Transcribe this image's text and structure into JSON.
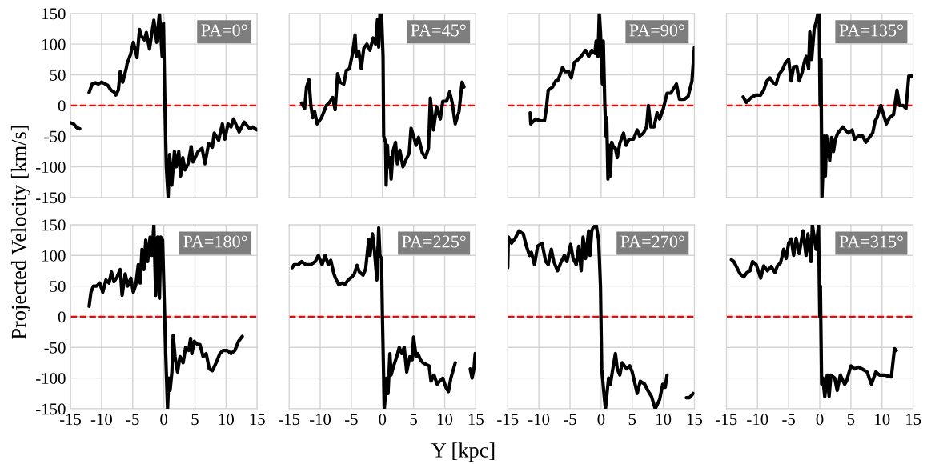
{
  "chart_data": [
    {
      "type": "line",
      "ylabel": "Projected Velocity [km/s]",
      "annotations": [
        "PA=0°"
      ],
      "tick_labels": "y",
      "grid": true,
      "xlim": [
        -15,
        15
      ],
      "ylim": [
        -150,
        150
      ],
      "xticks": [
        -15,
        -10,
        -5,
        0,
        5,
        10,
        15
      ],
      "yticks": [
        -150,
        -100,
        -50,
        0,
        50,
        100,
        150
      ],
      "ref_lines": [
        {
          "axis": "y",
          "value": 0,
          "color": "#ff0000",
          "line_style": "dashed"
        }
      ],
      "series": [
        {
          "color": "#000000",
          "x": [
            -15,
            -14.5,
            -14,
            -13.5,
            -13,
            -12,
            -11.5,
            -11,
            -10.5,
            -10,
            -9,
            -8.5,
            -8,
            -7.7,
            -7.3,
            -7,
            -6.6,
            -6,
            -5.9,
            -5.35,
            -4.9,
            -4.3,
            -3.9,
            -3.7,
            -3.1,
            -2.8,
            -2.3,
            -1.6,
            -1.15,
            -0.7,
            -0.27,
            -0.05,
            0.18,
            0.4,
            0.7,
            0.93,
            1.28,
            1.7,
            2.0,
            2.4,
            2.7,
            3.05,
            3.4,
            3.9,
            4.4,
            4.7,
            5.5,
            6.15,
            6.6,
            7.2,
            7.8,
            8.1,
            8.8,
            9.4,
            9.8,
            10.3,
            10.8,
            11.2,
            12.1,
            12.9,
            13.8,
            14.3,
            15
          ],
          "values": [
            -28,
            -30,
            -36,
            -38,
            null,
            21,
            35,
            37,
            35,
            38,
            33,
            25,
            22,
            17,
            25,
            55,
            38,
            62,
            68,
            83,
            103,
            78,
            124,
            114,
            107,
            119,
            92,
            139,
            103,
            150,
            80,
            134,
            0,
            -100,
            -150,
            -80,
            -130,
            -75,
            -100,
            -75,
            -115,
            -85,
            -105,
            -95,
            -67,
            -92,
            -75,
            -70,
            -95,
            -62,
            -68,
            -45,
            -57,
            -30,
            -55,
            -30,
            -35,
            -22,
            -43,
            -27,
            -38,
            -35,
            -40
          ]
        }
      ]
    },
    {
      "type": "line",
      "annotations": [
        "PA=45°"
      ],
      "tick_labels": false,
      "grid": true,
      "xlim": [
        -15,
        15
      ],
      "ylim": [
        -150,
        150
      ],
      "xticks": [
        -15,
        -10,
        -5,
        0,
        5,
        10,
        15
      ],
      "yticks": [
        -150,
        -100,
        -50,
        0,
        50,
        100,
        150
      ],
      "ref_lines": [
        {
          "axis": "y",
          "value": 0,
          "color": "#ff0000",
          "line_style": "dashed"
        }
      ],
      "series": [
        {
          "color": "#000000",
          "x": [
            -13,
            -12.5,
            -12.2,
            -11.8,
            -11.5,
            -11.2,
            -10.9,
            -10.5,
            -9.8,
            -9,
            -8.5,
            -8,
            -7.6,
            -7.2,
            -6.8,
            -6.2,
            -5.8,
            -5.3,
            -4.8,
            -4.4,
            -4.2,
            -3.8,
            -3.4,
            -3,
            -2.5,
            -2,
            -1.5,
            -1.1,
            -0.8,
            -0.6,
            -0.4,
            -0.15,
            0.1,
            0.2,
            0.5,
            0.6,
            0.8,
            1,
            1.2,
            1.4,
            1.7,
            2.1,
            2.4,
            2.8,
            3.3,
            3.8,
            4.3,
            4.6,
            5,
            5.4,
            5.8,
            6.4,
            6.9,
            7.4,
            7.7,
            8.2,
            8.7,
            9.3,
            9.7,
            10.3,
            10.8,
            11.2,
            11.7,
            12.3,
            12.8,
            13.1
          ],
          "values": [
            4,
            -5,
            30,
            42,
            0,
            -20,
            -10,
            -30,
            -20,
            0,
            5,
            13,
            -7,
            52,
            38,
            35,
            57,
            60,
            85,
            115,
            80,
            88,
            60,
            93,
            100,
            90,
            110,
            100,
            140,
            95,
            150,
            150,
            80,
            -50,
            -60,
            -130,
            -65,
            -100,
            -85,
            -120,
            -75,
            -60,
            -95,
            -73,
            -100,
            -88,
            -78,
            -37,
            -50,
            -65,
            -52,
            -77,
            -85,
            -70,
            12,
            -40,
            -2,
            -22,
            7,
            7,
            22,
            5,
            -30,
            -10,
            38,
            30
          ]
        }
      ]
    },
    {
      "type": "line",
      "annotations": [
        "PA=90°"
      ],
      "tick_labels": false,
      "grid": true,
      "xlim": [
        -15,
        15
      ],
      "ylim": [
        -150,
        150
      ],
      "xticks": [
        -15,
        -10,
        -5,
        0,
        5,
        10,
        15
      ],
      "yticks": [
        -150,
        -100,
        -50,
        0,
        50,
        100,
        150
      ],
      "ref_lines": [
        {
          "axis": "y",
          "value": 0,
          "color": "#ff0000",
          "line_style": "dashed"
        }
      ],
      "series": [
        {
          "color": "#000000",
          "x": [
            -11.4,
            -11.3,
            -10.5,
            -9.8,
            -9.1,
            -8.8,
            -8.5,
            -7.8,
            -7.3,
            -7,
            -6.6,
            -6.2,
            -5.8,
            -5.2,
            -4.8,
            -4.3,
            -3.7,
            -3.2,
            -2.5,
            -2,
            -1.5,
            -1,
            -0.8,
            -0.5,
            -0.3,
            -0.1,
            0.2,
            0.35,
            0.6,
            0.8,
            0.9,
            1.1,
            1.3,
            1.5,
            1.7,
            2,
            2.3,
            2.6,
            3,
            3.6,
            4,
            4.5,
            5.2,
            5.8,
            6.2,
            6.8,
            7.3,
            7.6,
            8,
            8.5,
            9,
            9.4,
            10,
            10.6,
            11.2,
            12.1,
            12.6,
            13.4,
            14,
            14.6,
            15
          ],
          "values": [
            -12,
            -30,
            -22,
            -25,
            -25,
            -5,
            25,
            30,
            40,
            40,
            50,
            62,
            55,
            55,
            45,
            70,
            75,
            80,
            90,
            80,
            90,
            85,
            105,
            80,
            150,
            120,
            35,
            105,
            0,
            -50,
            -20,
            -120,
            -65,
            -115,
            -60,
            -68,
            -70,
            -85,
            -62,
            -45,
            -65,
            -55,
            -55,
            -40,
            -50,
            -45,
            -35,
            0,
            -35,
            -35,
            -12,
            -22,
            -5,
            20,
            20,
            35,
            10,
            10,
            15,
            40,
            95
          ]
        }
      ]
    },
    {
      "type": "line",
      "annotations": [
        "PA=135°"
      ],
      "tick_labels": false,
      "grid": true,
      "xlim": [
        -15,
        15
      ],
      "ylim": [
        -150,
        150
      ],
      "xticks": [
        -15,
        -10,
        -5,
        0,
        5,
        10,
        15
      ],
      "yticks": [
        -150,
        -100,
        -50,
        0,
        50,
        100,
        150
      ],
      "ref_lines": [
        {
          "axis": "y",
          "value": 0,
          "color": "#ff0000",
          "line_style": "dashed"
        }
      ],
      "series": [
        {
          "color": "#000000",
          "x": [
            -12.3,
            -11.8,
            -11,
            -10.3,
            -9.5,
            -9,
            -8.5,
            -8,
            -7.5,
            -7,
            -6.6,
            -6,
            -5.5,
            -5,
            -4.6,
            -4.2,
            -3.7,
            -3.3,
            -2.8,
            -2.5,
            -2.2,
            -1.8,
            -1.6,
            -1.3,
            -0.9,
            -0.6,
            -0.3,
            -0.1,
            0.05,
            0.2,
            0.35,
            0.7,
            0.9,
            1.1,
            1.3,
            1.6,
            1.9,
            2.2,
            2.5,
            2.9,
            3.3,
            3.7,
            4.1,
            4.6,
            5.2,
            5.6,
            6.2,
            6.9,
            7.4,
            8.5,
            8.9,
            9.2,
            9.8,
            10.7,
            11.2,
            11.85,
            12.4,
            12.8,
            13.4,
            13.85,
            14.3,
            14.8
          ],
          "values": [
            14,
            5,
            13,
            17,
            17,
            25,
            40,
            45,
            37,
            35,
            50,
            58,
            70,
            75,
            40,
            63,
            64,
            40,
            55,
            70,
            80,
            60,
            120,
            75,
            125,
            135,
            150,
            150,
            0,
            75,
            -150,
            -50,
            -115,
            -50,
            -65,
            -90,
            -52,
            -75,
            -55,
            -45,
            -40,
            -35,
            -40,
            -45,
            -40,
            -55,
            -50,
            -50,
            -60,
            -45,
            -25,
            -20,
            0,
            -30,
            -20,
            -15,
            25,
            0,
            0,
            -5,
            48,
            48
          ]
        }
      ]
    },
    {
      "type": "line",
      "annotations": [
        "PA=180°"
      ],
      "grid": true,
      "xlim": [
        -15,
        15
      ],
      "ylim": [
        -150,
        150
      ],
      "xticks": [
        -15,
        -10,
        -5,
        0,
        5,
        10,
        15
      ],
      "yticks": [
        -150,
        -100,
        -50,
        0,
        50,
        100,
        150
      ],
      "ref_lines": [
        {
          "axis": "y",
          "value": 0,
          "color": "#ff0000",
          "line_style": "dashed"
        }
      ],
      "series": [
        {
          "color": "#000000",
          "x": [
            -12,
            -11.7,
            -11.3,
            -10.8,
            -10.3,
            -9.8,
            -9.3,
            -8.8,
            -8.4,
            -8,
            -7.5,
            -7,
            -6.7,
            -6.2,
            -5.8,
            -5.3,
            -4.9,
            -4.5,
            -4.1,
            -3.8,
            -3.5,
            -3.2,
            -2.9,
            -2.6,
            -2.2,
            -1.9,
            -1.6,
            -1.3,
            -1,
            -0.7,
            -0.5,
            -0.2,
            0.3,
            0.6,
            0.8,
            1,
            1.3,
            1.5,
            1.8,
            2.2,
            2.6,
            3.1,
            3.5,
            4,
            4.3,
            4.5,
            4.9,
            5.4,
            5.8,
            6.3,
            6.8,
            7.3,
            7.8,
            8.4,
            9,
            9.5,
            10.2,
            10.8,
            11.4,
            12,
            12.6
          ],
          "values": [
            17,
            40,
            50,
            50,
            55,
            40,
            60,
            55,
            73,
            57,
            65,
            77,
            35,
            70,
            50,
            63,
            40,
            52,
            85,
            55,
            110,
            77,
            125,
            90,
            130,
            100,
            150,
            35,
            130,
            30,
            130,
            125,
            -60,
            -150,
            -100,
            -120,
            -90,
            -30,
            -65,
            -90,
            -65,
            -75,
            -50,
            -55,
            -35,
            -60,
            -40,
            -45,
            -45,
            -65,
            -60,
            -85,
            -88,
            -75,
            -60,
            -55,
            -55,
            -60,
            -55,
            -40,
            -32
          ]
        }
      ]
    },
    {
      "type": "line",
      "xlabel": "Y [kpc]",
      "annotations": [
        "PA=225°"
      ],
      "tick_labels": "x",
      "grid": true,
      "xlim": [
        -15,
        15
      ],
      "ylim": [
        -150,
        150
      ],
      "xticks": [
        -15,
        -10,
        -5,
        0,
        5,
        10,
        15
      ],
      "yticks": [
        -150,
        -100,
        -50,
        0,
        50,
        100,
        150
      ],
      "ref_lines": [
        {
          "axis": "y",
          "value": 0,
          "color": "#ff0000",
          "line_style": "dashed"
        }
      ],
      "series": [
        {
          "color": "#000000",
          "x": [
            -14.5,
            -14.2,
            -13.5,
            -13,
            -12.3,
            -11.5,
            -10.8,
            -10.3,
            -9.7,
            -9.2,
            -8.7,
            -8.3,
            -7.8,
            -7.5,
            -7,
            -6.5,
            -6,
            -5.5,
            -4.9,
            -4.5,
            -4.1,
            -3.7,
            -3.1,
            -2.7,
            -2.2,
            -2,
            -1.6,
            -1.3,
            -0.9,
            -0.6,
            -0.4,
            -0.15,
            0,
            0.3,
            0.5,
            0.7,
            0.9,
            1.2,
            1.4,
            1.8,
            2.3,
            2.7,
            3.1,
            3.5,
            3.9,
            4.4,
            4.8,
            5,
            5.4,
            5.7,
            6.1,
            6.5,
            7.1,
            7.5,
            7.8,
            8.3,
            8.8,
            9.2,
            9.7,
            10.2,
            10.6,
            11,
            11.7,
            13,
            14.1,
            14.4,
            14.7,
            14.9
          ],
          "values": [
            80,
            85,
            85,
            90,
            85,
            85,
            90,
            100,
            85,
            100,
            85,
            92,
            70,
            62,
            52,
            55,
            53,
            60,
            65,
            70,
            84,
            73,
            68,
            78,
            126,
            100,
            135,
            110,
            60,
            145,
            100,
            95,
            0,
            -150,
            -125,
            -100,
            -125,
            -60,
            -95,
            -80,
            -65,
            -50,
            -60,
            -50,
            -90,
            -65,
            -70,
            -33,
            -65,
            -60,
            -70,
            -75,
            -78,
            -80,
            -105,
            -95,
            -110,
            -105,
            -100,
            -115,
            -122,
            -100,
            -75,
            null,
            -85,
            -100,
            -85,
            -60
          ]
        }
      ]
    },
    {
      "type": "line",
      "annotations": [
        "PA=270°"
      ],
      "tick_labels": "x",
      "grid": true,
      "xlim": [
        -15,
        15
      ],
      "ylim": [
        -150,
        150
      ],
      "xticks": [
        -15,
        -10,
        -5,
        0,
        5,
        10,
        15
      ],
      "yticks": [
        -150,
        -100,
        -50,
        0,
        50,
        100,
        150
      ],
      "ref_lines": [
        {
          "axis": "y",
          "value": 0,
          "color": "#ff0000",
          "line_style": "dashed"
        }
      ],
      "series": [
        {
          "color": "#000000",
          "x": [
            -15,
            -14.9,
            -14.4,
            -13.8,
            -13.2,
            -12.5,
            -12,
            -11.5,
            -11.2,
            -10.7,
            -10.2,
            -9.5,
            -8.9,
            -8.5,
            -8,
            -7.6,
            -7,
            -6.4,
            -5.9,
            -5.5,
            -4.9,
            -4.5,
            -4,
            -3.6,
            -3.2,
            -2.9,
            -2.5,
            -2,
            -1.8,
            -1.5,
            -1.3,
            -0.8,
            -0.4,
            -0.1,
            0.1,
            0.5,
            0.7,
            1.2,
            1.5,
            1.8,
            2.3,
            2.6,
            3,
            3.4,
            4.1,
            4.6,
            5,
            5.8,
            6.3,
            7,
            7.5,
            8.1,
            8.7,
            9.4,
            9.9,
            10.3,
            10.6,
            12,
            13.7,
            14.2,
            14.8
          ],
          "values": [
            80,
            130,
            120,
            128,
            140,
            135,
            115,
            100,
            105,
            85,
            115,
            120,
            90,
            85,
            110,
            90,
            75,
            90,
            100,
            90,
            118,
            95,
            85,
            115,
            75,
            130,
            95,
            140,
            100,
            140,
            145,
            150,
            125,
            50,
            -85,
            -130,
            -150,
            -100,
            -110,
            -90,
            -60,
            -85,
            -95,
            -75,
            -85,
            -80,
            -90,
            -125,
            -105,
            -110,
            -120,
            -130,
            -150,
            -135,
            -110,
            -115,
            -95,
            null,
            -132,
            -132,
            -125
          ]
        }
      ]
    },
    {
      "type": "line",
      "annotations": [
        "PA=315°"
      ],
      "tick_labels": "x",
      "grid": true,
      "xlim": [
        -15,
        15
      ],
      "ylim": [
        -150,
        150
      ],
      "xticks": [
        -15,
        -10,
        -5,
        0,
        5,
        10,
        15
      ],
      "yticks": [
        -150,
        -100,
        -50,
        0,
        50,
        100,
        150
      ],
      "ref_lines": [
        {
          "axis": "y",
          "value": 0,
          "color": "#ff0000",
          "line_style": "dashed"
        }
      ],
      "series": [
        {
          "color": "#000000",
          "x": [
            -14.2,
            -13.8,
            -13.3,
            -12.8,
            -12.2,
            -11.7,
            -11.2,
            -10.8,
            -10.2,
            -9.5,
            -9,
            -8.4,
            -7.8,
            -7.2,
            -6.8,
            -6.3,
            -5.8,
            -5.4,
            -5,
            -4.6,
            -4.2,
            -3.8,
            -3.3,
            -2.7,
            -2.2,
            -1.9,
            -1.4,
            -1.2,
            -0.6,
            -0.2,
            0,
            0.1,
            0.3,
            0.5,
            0.8,
            1.2,
            1.5,
            1.8,
            2.4,
            2.8,
            3.3,
            4,
            4.3,
            5,
            5.6,
            6.2,
            6.8,
            7.6,
            8.3,
            9,
            9.6,
            10.3,
            11.5,
            12,
            12.3
          ],
          "values": [
            93,
            90,
            80,
            70,
            65,
            72,
            75,
            90,
            85,
            63,
            83,
            75,
            82,
            72,
            83,
            88,
            110,
            95,
            120,
            127,
            100,
            128,
            103,
            140,
            100,
            135,
            90,
            150,
            110,
            150,
            0,
            50,
            -110,
            -100,
            -130,
            -95,
            -130,
            -95,
            -100,
            -120,
            -95,
            -110,
            -105,
            -80,
            -85,
            -82,
            -85,
            -90,
            -110,
            -90,
            -95,
            -95,
            -98,
            -52,
            -55
          ]
        }
      ]
    }
  ]
}
